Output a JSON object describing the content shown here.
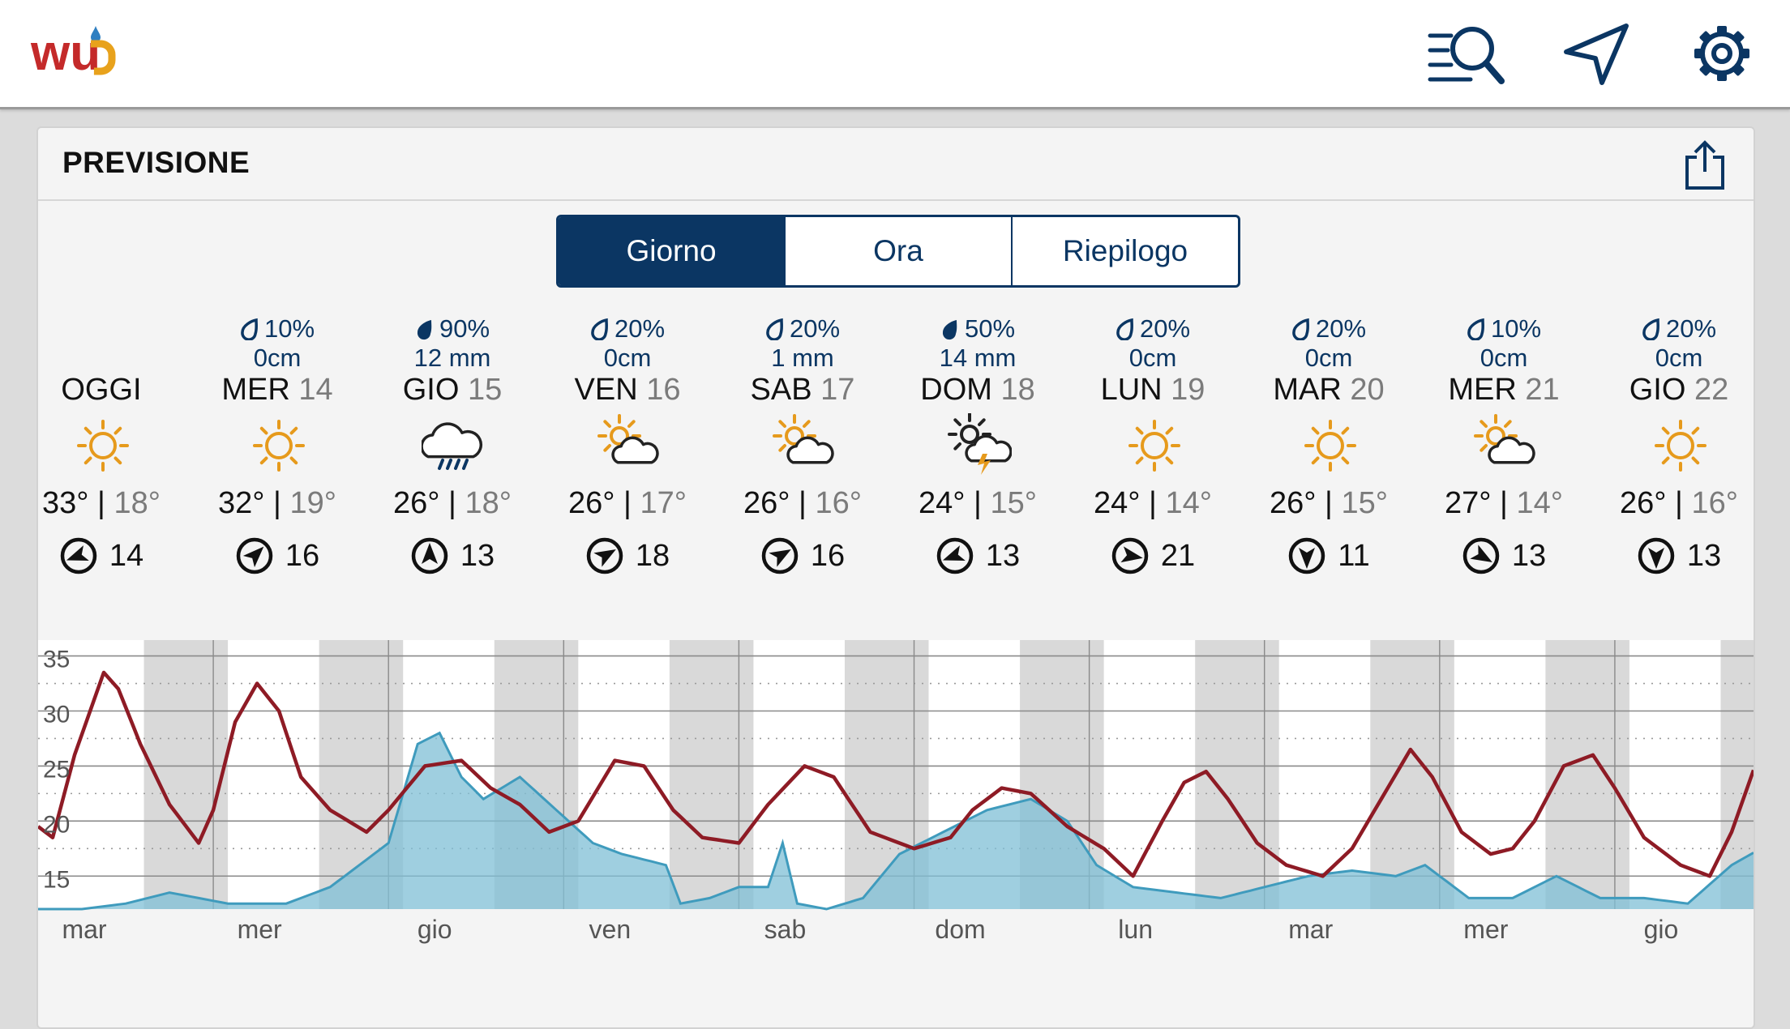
{
  "brand": {
    "logo_text": "wu"
  },
  "toolbar": {
    "search_icon": "search-list-icon",
    "location_icon": "location-arrow-icon",
    "settings_icon": "gear-icon"
  },
  "card": {
    "title": "PREVISIONE",
    "share_icon": "share-icon"
  },
  "tabs": [
    {
      "label": "Giorno",
      "active": true
    },
    {
      "label": "Ora",
      "active": false
    },
    {
      "label": "Riepilogo",
      "active": false
    }
  ],
  "days": [
    {
      "name": "OGGI",
      "num": "",
      "pct": "",
      "amt": "",
      "drop": "",
      "icon": "sun",
      "high": "33°",
      "low": "18°",
      "wind": "14",
      "dir": 250
    },
    {
      "name": "MER",
      "num": "14",
      "pct": "10%",
      "amt": "0cm",
      "drop": "outline",
      "icon": "sun",
      "high": "32°",
      "low": "19°",
      "wind": "16",
      "dir": 45
    },
    {
      "name": "GIO",
      "num": "15",
      "pct": "90%",
      "amt": "12 mm",
      "drop": "filled",
      "icon": "rain",
      "high": "26°",
      "low": "18°",
      "wind": "13",
      "dir": 0
    },
    {
      "name": "VEN",
      "num": "16",
      "pct": "20%",
      "amt": "0cm",
      "drop": "outline",
      "icon": "partly",
      "high": "26°",
      "low": "17°",
      "wind": "18",
      "dir": 60
    },
    {
      "name": "SAB",
      "num": "17",
      "pct": "20%",
      "amt": "1 mm",
      "drop": "outline",
      "icon": "partly",
      "high": "26°",
      "low": "16°",
      "wind": "16",
      "dir": 60
    },
    {
      "name": "DOM",
      "num": "18",
      "pct": "50%",
      "amt": "14 mm",
      "drop": "filled",
      "icon": "storm",
      "high": "24°",
      "low": "15°",
      "wind": "13",
      "dir": 250
    },
    {
      "name": "LUN",
      "num": "19",
      "pct": "20%",
      "amt": "0cm",
      "drop": "outline",
      "icon": "sun",
      "high": "24°",
      "low": "14°",
      "wind": "21",
      "dir": 100
    },
    {
      "name": "MAR",
      "num": "20",
      "pct": "20%",
      "amt": "0cm",
      "drop": "outline",
      "icon": "sun",
      "high": "26°",
      "low": "15°",
      "wind": "11",
      "dir": 180
    },
    {
      "name": "MER",
      "num": "21",
      "pct": "10%",
      "amt": "0cm",
      "drop": "outline",
      "icon": "partly",
      "high": "27°",
      "low": "14°",
      "wind": "13",
      "dir": 120
    },
    {
      "name": "GIO",
      "num": "22",
      "pct": "20%",
      "amt": "0cm",
      "drop": "outline",
      "icon": "sun",
      "high": "26°",
      "low": "16°",
      "wind": "13",
      "dir": 180
    }
  ],
  "colors": {
    "accent": "#0b3663",
    "temp_line": "#8e1b25",
    "humidity_fill": "#7fbfd6",
    "humidity_line": "#3f9bbd",
    "sun": "#e69a1c"
  },
  "chart_data": {
    "type": "line",
    "x_unit": "hour",
    "x_range": [
      0,
      235
    ],
    "y_range": [
      12,
      36
    ],
    "y_ticks": [
      "15",
      "20",
      "25",
      "30",
      "35"
    ],
    "x_labels": [
      "mar",
      "mer",
      "gio",
      "ven",
      "sab",
      "dom",
      "lun",
      "mar",
      "mer",
      "gio"
    ],
    "x_label_hours": [
      7,
      31,
      55,
      79,
      103,
      127,
      151,
      175,
      199,
      223
    ],
    "night_bands": [
      [
        14.5,
        26
      ],
      [
        38.5,
        50
      ],
      [
        62.5,
        74
      ],
      [
        86.5,
        98
      ],
      [
        110.5,
        122
      ],
      [
        134.5,
        146
      ],
      [
        158.5,
        170
      ],
      [
        182.5,
        194
      ],
      [
        206.5,
        218
      ],
      [
        230.5,
        235
      ]
    ],
    "temperature_keypoints": [
      [
        0,
        19.5
      ],
      [
        2,
        18.5
      ],
      [
        5,
        26
      ],
      [
        9,
        33.5
      ],
      [
        11,
        32
      ],
      [
        14,
        27
      ],
      [
        18,
        21.5
      ],
      [
        22,
        18
      ],
      [
        24,
        21
      ],
      [
        27,
        29
      ],
      [
        30,
        32.5
      ],
      [
        33,
        30
      ],
      [
        36,
        24
      ],
      [
        40,
        21
      ],
      [
        45,
        19
      ],
      [
        48,
        21
      ],
      [
        53,
        25
      ],
      [
        58,
        25.5
      ],
      [
        62,
        23
      ],
      [
        66,
        21.5
      ],
      [
        70,
        19
      ],
      [
        74,
        20
      ],
      [
        79,
        25.5
      ],
      [
        83,
        25
      ],
      [
        87,
        21
      ],
      [
        91,
        18.5
      ],
      [
        96,
        18
      ],
      [
        100,
        21.5
      ],
      [
        105,
        25
      ],
      [
        109,
        24
      ],
      [
        114,
        19
      ],
      [
        120,
        17.5
      ],
      [
        125,
        18.5
      ],
      [
        128,
        21
      ],
      [
        132,
        23
      ],
      [
        136,
        22.5
      ],
      [
        141,
        19.5
      ],
      [
        146,
        17.5
      ],
      [
        150,
        15
      ],
      [
        154,
        20
      ],
      [
        157,
        23.5
      ],
      [
        160,
        24.5
      ],
      [
        163,
        22
      ],
      [
        167,
        18
      ],
      [
        171,
        16
      ],
      [
        176,
        15
      ],
      [
        180,
        17.5
      ],
      [
        184,
        22
      ],
      [
        188,
        26.5
      ],
      [
        191,
        24
      ],
      [
        195,
        19
      ],
      [
        199,
        17
      ],
      [
        202,
        17.5
      ],
      [
        205,
        20
      ],
      [
        209,
        25
      ],
      [
        213,
        26
      ],
      [
        216,
        23
      ],
      [
        220,
        18.5
      ],
      [
        225,
        16
      ],
      [
        229,
        15
      ],
      [
        232,
        19
      ],
      [
        236,
        26.5
      ],
      [
        238,
        24
      ],
      [
        242,
        18
      ]
    ],
    "humidity_keypoints": [
      [
        0,
        12
      ],
      [
        6,
        12
      ],
      [
        12,
        12.5
      ],
      [
        18,
        13.5
      ],
      [
        26,
        12.5
      ],
      [
        34,
        12.5
      ],
      [
        40,
        14
      ],
      [
        48,
        18
      ],
      [
        52,
        27
      ],
      [
        55,
        28
      ],
      [
        58,
        24
      ],
      [
        61,
        22
      ],
      [
        66,
        24
      ],
      [
        71,
        21
      ],
      [
        76,
        18
      ],
      [
        80,
        17
      ],
      [
        86,
        16
      ],
      [
        88,
        12.5
      ],
      [
        92,
        13
      ],
      [
        96,
        14
      ],
      [
        100,
        14
      ],
      [
        102,
        18
      ],
      [
        104,
        12.5
      ],
      [
        108,
        12
      ],
      [
        113,
        13
      ],
      [
        118,
        17
      ],
      [
        124,
        19
      ],
      [
        130,
        21
      ],
      [
        136,
        22
      ],
      [
        141,
        20
      ],
      [
        145,
        16
      ],
      [
        150,
        14
      ],
      [
        156,
        13.5
      ],
      [
        162,
        13
      ],
      [
        168,
        14
      ],
      [
        174,
        15
      ],
      [
        180,
        15.5
      ],
      [
        186,
        15
      ],
      [
        190,
        16
      ],
      [
        196,
        13
      ],
      [
        202,
        13
      ],
      [
        208,
        15
      ],
      [
        214,
        13
      ],
      [
        220,
        13
      ],
      [
        226,
        12.5
      ],
      [
        232,
        16
      ],
      [
        236,
        17.5
      ],
      [
        240,
        17
      ]
    ]
  }
}
